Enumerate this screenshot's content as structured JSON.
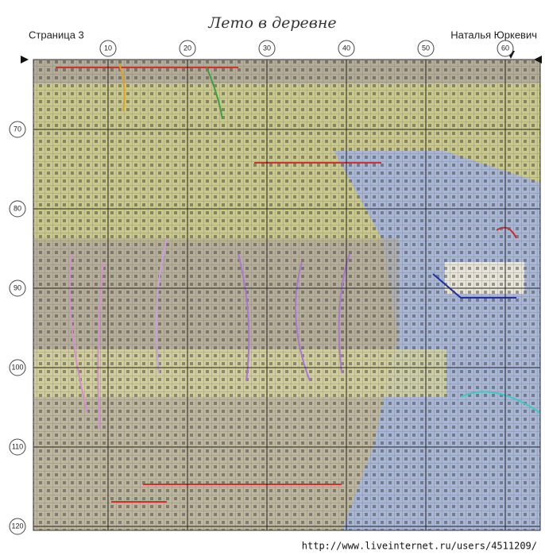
{
  "header": {
    "title": "Лето в деревне",
    "page": "Страница 3",
    "author": "Наталья Юркевич"
  },
  "columns": [
    10,
    20,
    30,
    40,
    50,
    60
  ],
  "rows": [
    70,
    80,
    90,
    100,
    110,
    120
  ],
  "footer": {
    "url": "http://www.liveinternet.ru/users/4511209/"
  }
}
